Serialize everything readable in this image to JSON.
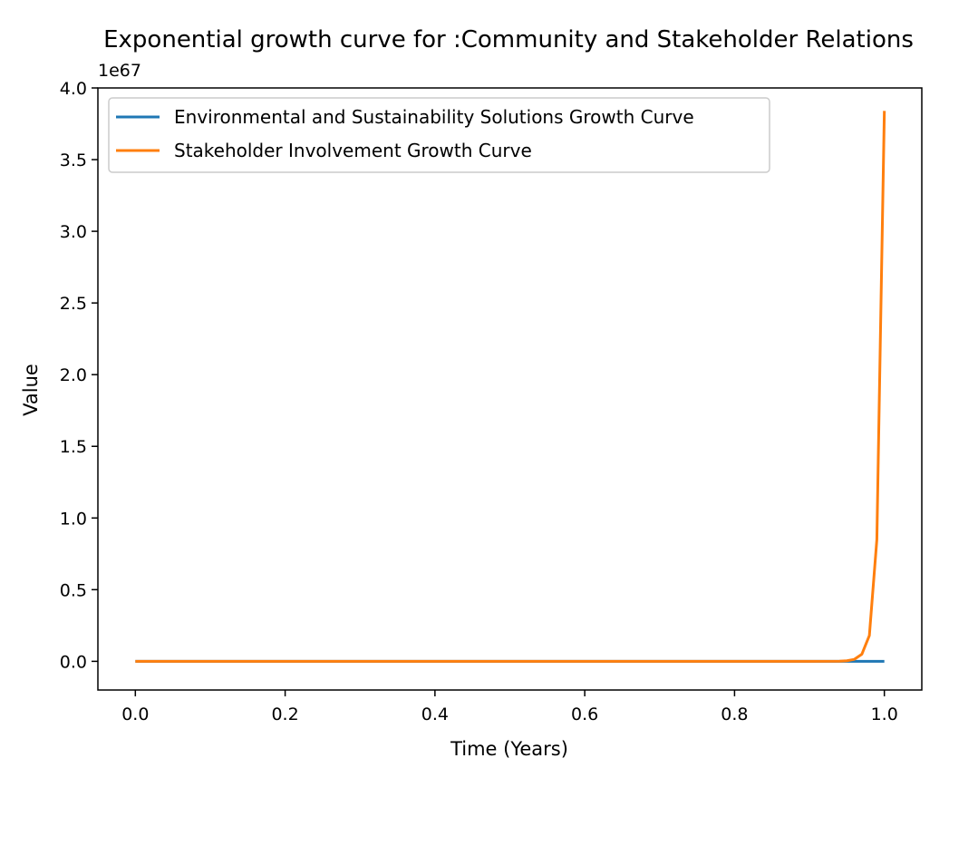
{
  "chart_data": {
    "type": "line",
    "title": "Exponential growth curve for :Community and Stakeholder Relations",
    "xlabel": "Time (Years)",
    "ylabel": "Value",
    "y_offset_label": "1e67",
    "y_scale_factor": 1e+67,
    "xlim": [
      -0.05,
      1.05
    ],
    "ylim": [
      -0.2,
      4.0
    ],
    "xticks": [
      0.0,
      0.2,
      0.4,
      0.6,
      0.8,
      1.0
    ],
    "xtick_labels": [
      "0.0",
      "0.2",
      "0.4",
      "0.6",
      "0.8",
      "1.0"
    ],
    "yticks": [
      0.0,
      0.5,
      1.0,
      1.5,
      2.0,
      2.5,
      3.0,
      3.5,
      4.0
    ],
    "ytick_labels": [
      "0.0",
      "0.5",
      "1.0",
      "1.5",
      "2.0",
      "2.5",
      "3.0",
      "3.5",
      "4.0"
    ],
    "grid": false,
    "legend_position": "top-left",
    "series": [
      {
        "name": "Environmental and Sustainability Solutions Growth Curve",
        "color": "#1f77b4",
        "x": [
          0.0,
          0.1,
          0.2,
          0.3,
          0.4,
          0.5,
          0.6,
          0.7,
          0.8,
          0.9,
          1.0
        ],
        "y": [
          0,
          0,
          0,
          0,
          0,
          0,
          0,
          0,
          0,
          0,
          0
        ]
      },
      {
        "name": "Stakeholder Involvement Growth Curve",
        "color": "#ff7f0e",
        "x": [
          0.0,
          0.5,
          0.9,
          0.94,
          0.95,
          0.96,
          0.97,
          0.98,
          0.99,
          1.0
        ],
        "y": [
          0,
          0,
          0,
          0.001,
          0.004,
          0.014,
          0.05,
          0.18,
          0.85,
          3.84
        ]
      }
    ]
  }
}
